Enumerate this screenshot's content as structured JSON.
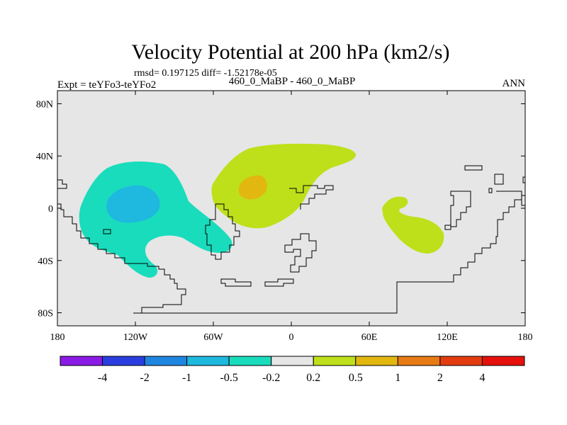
{
  "chart_data": {
    "type": "map-contour",
    "title": "Velocity Potential at 200 hPa (km2/s)",
    "stats": "rmsd= 0.197125 diff= -1.52178e-05",
    "experiment": "Expt = teYFo3-teYFo2",
    "subtitle": "460_0_MaBP - 460_0_MaBP",
    "season": "ANN",
    "x_ticks": [
      "180",
      "120W",
      "60W",
      "0",
      "60E",
      "120E",
      "180"
    ],
    "x_values": [
      -180,
      -120,
      -60,
      0,
      60,
      120,
      180
    ],
    "y_ticks": [
      "80N",
      "40N",
      "0",
      "40S",
      "80S"
    ],
    "y_values": [
      80,
      40,
      0,
      -40,
      -80
    ],
    "xlim": [
      -180,
      180
    ],
    "ylim": [
      -90,
      90
    ],
    "colorbar": {
      "labels": [
        "-4",
        "-2",
        "-1",
        "-0.5",
        "-0.2",
        "0.2",
        "0.5",
        "1",
        "2",
        "4"
      ],
      "levels": [
        -4,
        -2,
        -1,
        -0.5,
        -0.2,
        0.2,
        0.5,
        1,
        2,
        4
      ],
      "colors": [
        "#8a1ae6",
        "#2a3ee0",
        "#1f86e0",
        "#1fb8df",
        "#19dcbc",
        "#e6e6e6",
        "#bde01a",
        "#e2b710",
        "#e87a14",
        "#e23c10",
        "#e6100c"
      ]
    },
    "regions": [
      {
        "name": "negative-anomaly-west-pacific",
        "level": "-0.5 to -0.2",
        "color": "#19dcbc"
      },
      {
        "name": "negative-core",
        "level": "-1 to -0.5",
        "color": "#1fb8df"
      },
      {
        "name": "positive-anomaly-atlantic",
        "level": "0.2 to 0.5",
        "color": "#bde01a"
      },
      {
        "name": "positive-core",
        "level": "0.5 to 1",
        "color": "#e2b710"
      },
      {
        "name": "positive-anomaly-east",
        "level": "0.2 to 0.5",
        "color": "#bde01a"
      }
    ]
  }
}
